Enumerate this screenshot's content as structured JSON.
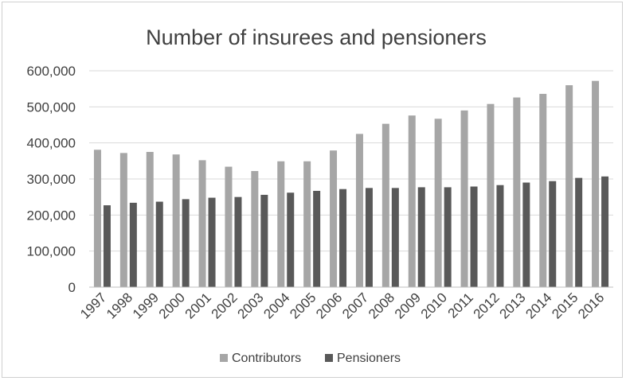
{
  "chart_data": {
    "type": "bar",
    "title": "Number of insurees and pensioners",
    "xlabel": "",
    "ylabel": "",
    "categories": [
      "1997",
      "1998",
      "1999",
      "2000",
      "2001",
      "2002",
      "2003",
      "2004",
      "2005",
      "2006",
      "2007",
      "2008",
      "2009",
      "2010",
      "2011",
      "2012",
      "2013",
      "2014",
      "2015",
      "2016"
    ],
    "series": [
      {
        "name": "Contributors",
        "color": "#a6a6a6",
        "values": [
          381000,
          372000,
          375000,
          368000,
          352000,
          334000,
          322000,
          349000,
          349000,
          379000,
          425000,
          453000,
          476000,
          467000,
          490000,
          508000,
          526000,
          536000,
          560000,
          572000
        ]
      },
      {
        "name": "Pensioners",
        "color": "#595959",
        "values": [
          227000,
          234000,
          237000,
          244000,
          248000,
          250000,
          256000,
          262000,
          267000,
          272000,
          275000,
          275000,
          277000,
          277000,
          279000,
          283000,
          290000,
          294000,
          303000,
          307000
        ]
      }
    ],
    "ylim": [
      0,
      600000
    ],
    "yticks": [
      "0",
      "100,000",
      "200,000",
      "300,000",
      "400,000",
      "500,000",
      "600,000"
    ],
    "grid": true,
    "legend_position": "bottom"
  }
}
